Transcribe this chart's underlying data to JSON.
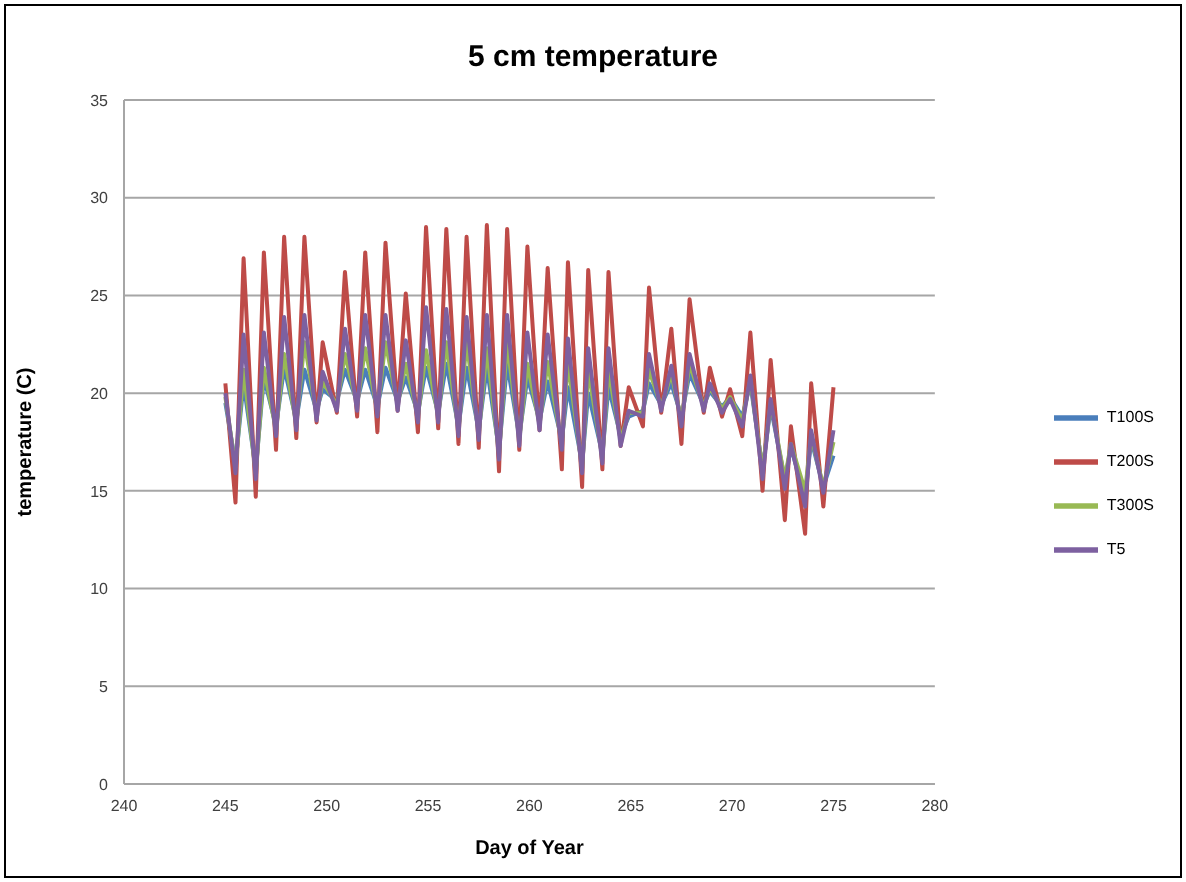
{
  "chart_data": {
    "type": "line",
    "title": "5 cm temperature",
    "xlabel": "Day of Year",
    "ylabel": "temperature (C)",
    "x": [
      245,
      245.5,
      245.9,
      246.5,
      246.9,
      247.5,
      247.9,
      248.5,
      248.9,
      249.5,
      249.8,
      250.5,
      250.9,
      251.5,
      251.9,
      252.5,
      252.9,
      253.5,
      253.9,
      254.5,
      254.9,
      255.5,
      255.9,
      256.5,
      256.9,
      257.5,
      257.9,
      258.5,
      258.9,
      259.5,
      259.9,
      260.5,
      260.9,
      261.6,
      261.9,
      262.6,
      262.9,
      263.6,
      263.9,
      264.5,
      264.9,
      265.6,
      265.9,
      266.5,
      267,
      267.5,
      267.9,
      268.6,
      268.9,
      269.5,
      269.9,
      270.5,
      270.9,
      271.5,
      271.9,
      272.6,
      272.9,
      273.6,
      273.9,
      274.5,
      275
    ],
    "series": [
      {
        "name": "T100S",
        "color": "#4a7ebb",
        "values": [
          19.5,
          16.4,
          20.5,
          16.1,
          20.8,
          18.3,
          21.3,
          18.6,
          21.2,
          19.1,
          20.2,
          19.6,
          21.2,
          19.6,
          21.2,
          19.3,
          21.3,
          19.6,
          20.8,
          19.0,
          21.3,
          19.0,
          21.5,
          18.3,
          21.3,
          18.1,
          21.3,
          17.1,
          21.5,
          17.8,
          20.8,
          18.6,
          20.6,
          17.6,
          20.3,
          16.4,
          20.0,
          16.9,
          20.3,
          17.8,
          18.8,
          19.1,
          20.5,
          19.4,
          20.5,
          18.8,
          21.0,
          19.4,
          20.1,
          19.3,
          19.8,
          18.8,
          20.5,
          16.1,
          19.3,
          15.6,
          17.2,
          14.7,
          17.6,
          15.2,
          16.8
        ]
      },
      {
        "name": "T200S",
        "color": "#be4b48",
        "values": [
          20.5,
          14.4,
          26.9,
          14.7,
          27.2,
          17.1,
          28.0,
          17.7,
          28.0,
          18.5,
          22.6,
          19.0,
          26.2,
          18.8,
          27.2,
          18.0,
          27.7,
          19.1,
          25.1,
          18.0,
          28.5,
          18.2,
          28.4,
          17.4,
          28.0,
          17.2,
          28.6,
          16.0,
          28.4,
          17.1,
          27.5,
          18.1,
          26.4,
          16.1,
          26.7,
          15.2,
          26.3,
          16.1,
          26.2,
          17.3,
          20.3,
          18.3,
          25.4,
          19.0,
          23.3,
          17.4,
          24.8,
          19.0,
          21.3,
          18.8,
          20.2,
          17.8,
          23.1,
          15.0,
          21.7,
          13.5,
          18.3,
          12.8,
          20.5,
          14.2,
          20.3
        ]
      },
      {
        "name": "T300S",
        "color": "#98b954",
        "values": [
          19.8,
          16.2,
          21.2,
          15.9,
          21.3,
          18.1,
          22.0,
          18.4,
          22.6,
          18.9,
          20.6,
          19.4,
          22.0,
          19.4,
          22.3,
          19.1,
          22.6,
          19.4,
          21.5,
          18.8,
          22.2,
          18.8,
          22.6,
          18.1,
          22.6,
          17.9,
          22.3,
          16.9,
          22.6,
          17.6,
          21.5,
          18.4,
          21.6,
          17.4,
          21.6,
          16.2,
          21.2,
          16.7,
          21.2,
          17.6,
          19.0,
          19.0,
          21.2,
          19.3,
          21.0,
          18.6,
          21.5,
          19.3,
          20.3,
          19.2,
          19.8,
          18.6,
          20.7,
          16.0,
          19.5,
          15.6,
          17.4,
          15.0,
          17.8,
          15.2,
          17.5
        ]
      },
      {
        "name": "T5",
        "color": "#7d60a0",
        "values": [
          20.0,
          15.9,
          23.0,
          15.6,
          23.1,
          17.8,
          23.9,
          18.1,
          24.0,
          18.6,
          21.1,
          19.1,
          23.3,
          19.1,
          24.0,
          18.8,
          24.0,
          19.1,
          22.7,
          18.5,
          24.4,
          18.5,
          24.3,
          17.8,
          23.9,
          17.6,
          24.0,
          16.6,
          24.0,
          17.3,
          23.1,
          18.1,
          23.0,
          17.1,
          22.8,
          15.9,
          22.3,
          16.4,
          22.3,
          17.3,
          19.1,
          18.8,
          22.0,
          19.1,
          21.4,
          18.3,
          22.0,
          19.1,
          20.5,
          19.0,
          19.7,
          18.3,
          20.9,
          15.6,
          19.7,
          15.1,
          17.4,
          14.2,
          18.1,
          14.9,
          18.1
        ]
      }
    ],
    "xlim": [
      240,
      280
    ],
    "xticks": [
      240,
      245,
      250,
      255,
      260,
      265,
      270,
      275,
      280
    ],
    "ylim": [
      0,
      35
    ],
    "yticks": [
      0,
      5,
      10,
      15,
      20,
      25,
      30,
      35
    ],
    "grid": "y",
    "legend": "right",
    "marker": "none",
    "line_style": "solid"
  }
}
